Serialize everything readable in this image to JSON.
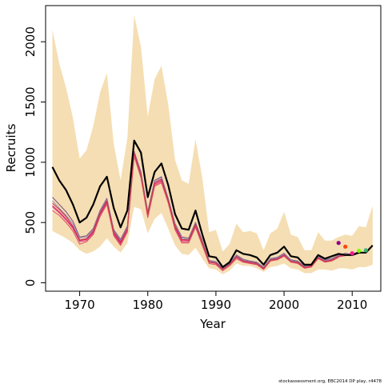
{
  "chart_data": {
    "type": "line",
    "title": "",
    "xlabel": "Year",
    "ylabel": "Recruits",
    "xlim": [
      1965,
      2014.2
    ],
    "ylim": [
      -70,
      2300
    ],
    "x_ticks": [
      1970,
      1980,
      1990,
      2000,
      2010
    ],
    "y_ticks": [
      0,
      500,
      1000,
      1500,
      2000
    ],
    "grid": false,
    "legend": "none",
    "colors": {
      "band": "#f5deb3",
      "main": "#000000",
      "retro": [
        "#e8166e",
        "#d44a8a",
        "#7a4d7e",
        "#9b8bb8",
        "#c0303a",
        "#e04c5c",
        "#a0708c"
      ],
      "endpoints": [
        "#8b008b",
        "#ff4500",
        "#ff1493",
        "#7cfc00",
        "#3cb371"
      ]
    },
    "years": [
      1966,
      1967,
      1968,
      1969,
      1970,
      1971,
      1972,
      1973,
      1974,
      1975,
      1976,
      1977,
      1978,
      1979,
      1980,
      1981,
      1982,
      1983,
      1984,
      1985,
      1986,
      1987,
      1988,
      1989,
      1990,
      1991,
      1992,
      1993,
      1994,
      1995,
      1996,
      1997,
      1998,
      1999,
      2000,
      2001,
      2002,
      2003,
      2004,
      2005,
      2006,
      2007,
      2008,
      2009,
      2010,
      2011,
      2012,
      2013
    ],
    "band_upper": [
      2100,
      1820,
      1620,
      1370,
      1030,
      1100,
      1300,
      1580,
      1740,
      1150,
      850,
      1200,
      2220,
      1960,
      1380,
      1690,
      1800,
      1480,
      1020,
      850,
      820,
      1190,
      870,
      420,
      440,
      260,
      320,
      490,
      420,
      430,
      410,
      270,
      410,
      450,
      590,
      400,
      380,
      270,
      270,
      420,
      350,
      350,
      380,
      400,
      390,
      470,
      460,
      640
    ],
    "band_lower": [
      430,
      400,
      370,
      330,
      270,
      240,
      260,
      300,
      370,
      300,
      250,
      330,
      630,
      610,
      410,
      530,
      580,
      450,
      310,
      240,
      230,
      290,
      200,
      120,
      110,
      70,
      100,
      160,
      140,
      140,
      120,
      90,
      130,
      140,
      160,
      120,
      110,
      80,
      80,
      110,
      110,
      100,
      120,
      120,
      110,
      130,
      130,
      150
    ],
    "series": [
      {
        "name": "",
        "role": "main",
        "values": [
          960,
          850,
          770,
          650,
          500,
          540,
          650,
          800,
          880,
          620,
          460,
          600,
          1180,
          1080,
          710,
          920,
          990,
          810,
          570,
          450,
          440,
          600,
          400,
          220,
          210,
          130,
          170,
          270,
          240,
          230,
          210,
          150,
          230,
          250,
          300,
          220,
          210,
          150,
          150,
          230,
          200,
          220,
          240,
          230,
          230,
          250,
          250,
          310
        ]
      },
      {
        "name": "",
        "role": "retro",
        "values": [
          640,
          590,
          530,
          460,
          350,
          360,
          420,
          570,
          670,
          410,
          330,
          440,
          1070,
          890,
          560,
          820,
          850,
          680,
          460,
          350,
          350,
          480,
          330,
          170,
          160,
          110,
          150,
          220,
          180,
          170,
          160,
          120,
          190,
          200,
          230,
          180,
          170,
          130,
          140,
          210,
          180,
          190,
          220,
          235,
          230
        ]
      },
      {
        "name": "",
        "role": "retro",
        "values": [
          630,
          580,
          520,
          450,
          340,
          350,
          410,
          560,
          660,
          400,
          320,
          430,
          1060,
          880,
          550,
          810,
          840,
          670,
          450,
          340,
          340,
          470,
          320,
          170,
          160,
          110,
          150,
          210,
          175,
          165,
          155,
          115,
          185,
          195,
          225,
          175,
          165,
          125,
          135,
          205,
          175,
          185,
          215,
          225
        ]
      },
      {
        "name": "",
        "role": "retro",
        "values": [
          710,
          650,
          590,
          510,
          380,
          390,
          450,
          600,
          700,
          440,
          360,
          470,
          1090,
          920,
          590,
          850,
          880,
          700,
          490,
          380,
          370,
          500,
          350,
          185,
          175,
          120,
          160,
          230,
          195,
          180,
          170,
          130,
          200,
          210,
          245,
          190,
          180,
          140,
          150,
          220,
          190,
          200,
          230,
          245,
          235,
          260
        ]
      },
      {
        "name": "",
        "role": "retro",
        "values": [
          680,
          620,
          560,
          490,
          370,
          380,
          440,
          590,
          690,
          430,
          350,
          460,
          1080,
          910,
          580,
          840,
          870,
          690,
          480,
          370,
          360,
          490,
          340,
          180,
          170,
          115,
          155,
          225,
          190,
          175,
          165,
          125,
          195,
          205,
          240,
          185,
          175,
          135,
          145,
          215,
          185,
          195,
          225,
          240
        ]
      },
      {
        "name": "",
        "role": "retro",
        "values": [
          660,
          610,
          550,
          470,
          355,
          365,
          430,
          580,
          680,
          420,
          340,
          450,
          1075,
          900,
          570,
          830,
          860,
          685,
          470,
          360,
          355,
          485,
          335,
          175,
          165,
          112,
          152,
          218,
          182,
          170,
          160,
          120,
          188,
          198,
          232,
          178,
          170,
          128,
          138,
          208,
          178,
          188,
          220,
          232,
          232,
          255
        ]
      },
      {
        "name": "",
        "role": "retro",
        "values": [
          600,
          560,
          500,
          430,
          320,
          340,
          400,
          550,
          650,
          390,
          310,
          420,
          1050,
          870,
          540,
          800,
          830,
          660,
          440,
          330,
          330,
          460,
          310,
          160,
          150,
          100,
          140,
          200,
          170,
          160,
          150,
          110,
          180,
          190,
          220,
          170,
          160,
          120,
          130,
          200,
          170,
          180,
          210
        ]
      }
    ],
    "endpoints": [
      {
        "year": 2008,
        "value": 330
      },
      {
        "year": 2009,
        "value": 300
      },
      {
        "year": 2010,
        "value": 245
      },
      {
        "year": 2011,
        "value": 265
      },
      {
        "year": 2012,
        "value": 270
      }
    ]
  },
  "footer": "stockassessment.org, EBC2014 DP play, r4478"
}
